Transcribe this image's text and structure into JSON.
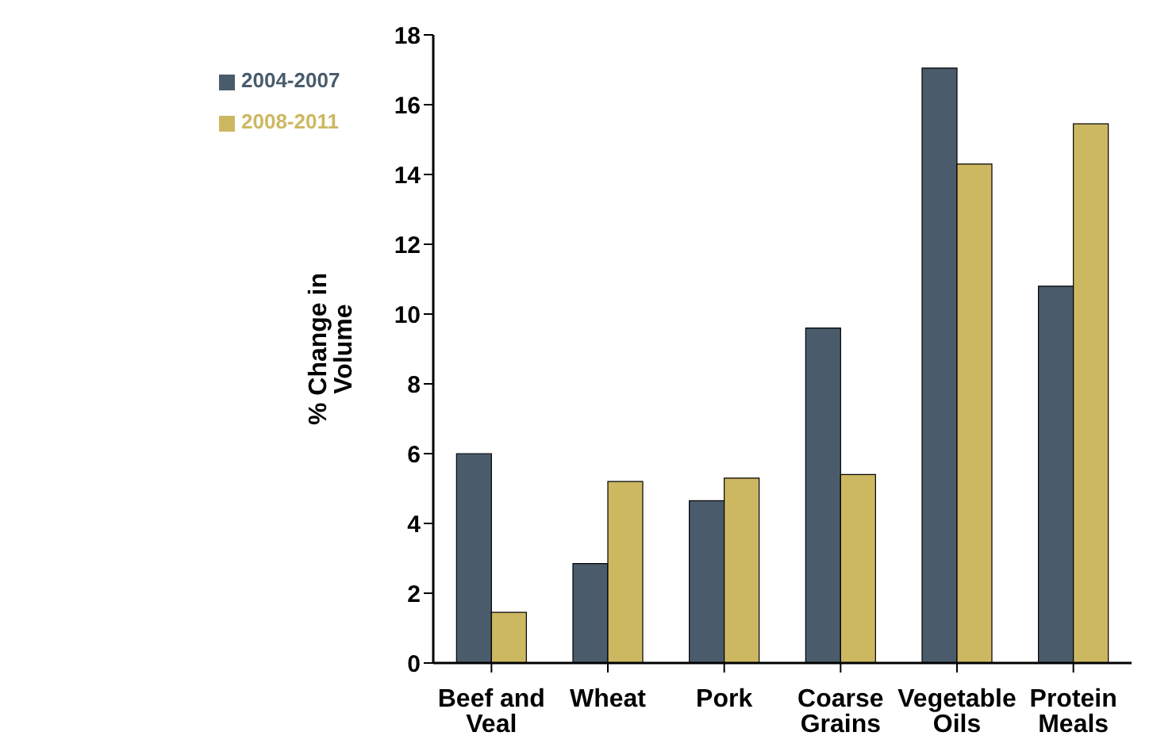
{
  "chart_data": {
    "type": "bar",
    "ylabel": "% Change in Volume",
    "categories": [
      "Beef and Veal",
      "Wheat",
      "Pork",
      "Coarse Grains",
      "Vegetable Oils",
      "Protein Meals"
    ],
    "series": [
      {
        "name": "2004-2007",
        "color": "#4a5c6c",
        "values": [
          6.0,
          2.85,
          4.65,
          9.6,
          17.05,
          10.8
        ]
      },
      {
        "name": "2008-2011",
        "color": "#cdb862",
        "values": [
          1.45,
          5.2,
          5.3,
          5.4,
          14.3,
          15.45
        ]
      }
    ],
    "ylim": [
      0,
      18
    ],
    "yticks": [
      0,
      2,
      4,
      6,
      8,
      10,
      12,
      14,
      16,
      18
    ],
    "grid": false,
    "legend": "top left"
  }
}
